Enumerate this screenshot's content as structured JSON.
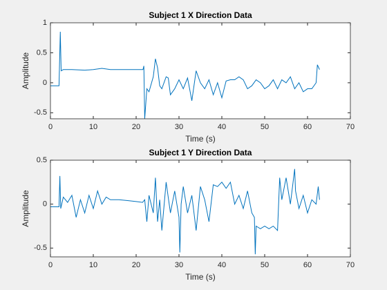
{
  "chart_data": [
    {
      "type": "line",
      "title": "Subject 1 X Direction Data",
      "xlabel": "Time (s)",
      "ylabel": "Amplitude",
      "xlim": [
        0,
        70
      ],
      "xticks": [
        0,
        10,
        20,
        30,
        40,
        50,
        60,
        70
      ],
      "ylim": [
        -0.6,
        1
      ],
      "yticks": [
        -0.5,
        0,
        0.5,
        1
      ],
      "x": [
        0,
        2,
        2.3,
        2.5,
        3,
        5,
        8,
        10,
        12,
        14,
        16,
        18,
        20,
        21.6,
        21.8,
        22,
        22.5,
        23,
        24,
        24.5,
        25,
        25.5,
        26,
        27,
        27.5,
        28,
        29,
        30,
        31,
        32,
        33,
        34,
        35,
        36,
        37,
        38,
        39,
        40,
        41,
        42,
        43,
        44,
        45,
        46,
        47,
        48,
        49,
        50,
        51,
        52,
        53,
        54,
        55,
        56,
        57,
        58,
        59,
        60,
        61,
        62,
        62.3,
        62.8
      ],
      "series": [
        {
          "name": "Subject 1 X",
          "color": "#0072bd",
          "values": [
            -0.05,
            -0.05,
            0.85,
            0.2,
            0.22,
            0.22,
            0.21,
            0.22,
            0.24,
            0.22,
            0.22,
            0.22,
            0.22,
            0.22,
            0.28,
            -0.6,
            -0.1,
            -0.15,
            0.1,
            0.4,
            0.25,
            -0.05,
            -0.1,
            0.1,
            0.08,
            -0.2,
            -0.1,
            0.05,
            -0.1,
            0.08,
            -0.3,
            0.2,
            0.0,
            -0.1,
            0.05,
            -0.2,
            0.0,
            -0.25,
            0.03,
            0.05,
            0.05,
            0.1,
            0.05,
            -0.1,
            -0.05,
            0.05,
            0.0,
            -0.1,
            -0.05,
            0.05,
            -0.1,
            0.05,
            0.0,
            0.1,
            -0.1,
            0.0,
            -0.15,
            -0.1,
            -0.1,
            0.0,
            0.3,
            0.22
          ]
        }
      ]
    },
    {
      "type": "line",
      "title": "Subject 1 Y Direction Data",
      "xlabel": "Time (s)",
      "ylabel": "Amplitude",
      "xlim": [
        0,
        70
      ],
      "xticks": [
        0,
        10,
        20,
        30,
        40,
        50,
        60,
        70
      ],
      "ylim": [
        -0.6,
        0.5
      ],
      "yticks": [
        -0.5,
        0,
        0.5
      ],
      "x": [
        0,
        2,
        2.2,
        2.4,
        3,
        4,
        5,
        6,
        7,
        8,
        9,
        10,
        11,
        12,
        13,
        14,
        15,
        16,
        18,
        20,
        21.5,
        22,
        22.5,
        23,
        24,
        24.5,
        25,
        25.5,
        26,
        27,
        28,
        29,
        30,
        30.2,
        30.5,
        31,
        32,
        33,
        34,
        35,
        36,
        37,
        38,
        39,
        40,
        41,
        42,
        43,
        44,
        45,
        46,
        47,
        47.6,
        47.8,
        48,
        49,
        50,
        51,
        52,
        53,
        53.5,
        54,
        55,
        56,
        57,
        57.2,
        58,
        59,
        60,
        61,
        62,
        62.5,
        62.8
      ],
      "series": [
        {
          "name": "Subject 1 Y",
          "color": "#0072bd",
          "values": [
            -0.03,
            -0.03,
            0.32,
            -0.05,
            0.08,
            0.02,
            0.1,
            -0.15,
            0.05,
            -0.1,
            0.1,
            -0.05,
            0.15,
            0.0,
            0.08,
            0.05,
            0.05,
            0.05,
            0.04,
            0.03,
            0.02,
            0.05,
            -0.2,
            0.1,
            -0.1,
            0.3,
            -0.2,
            0.05,
            -0.3,
            0.25,
            -0.1,
            0.15,
            -0.15,
            -0.55,
            0.0,
            0.2,
            -0.1,
            0.1,
            -0.3,
            0.2,
            0.05,
            -0.2,
            0.22,
            0.2,
            0.25,
            0.18,
            0.25,
            0.0,
            0.1,
            -0.05,
            0.15,
            -0.1,
            -0.15,
            -0.57,
            -0.25,
            -0.28,
            -0.25,
            -0.28,
            -0.25,
            -0.3,
            0.3,
            0.05,
            0.3,
            0.0,
            0.4,
            0.15,
            -0.05,
            0.1,
            -0.1,
            0.05,
            0.0,
            0.2,
            0.05
          ]
        }
      ]
    }
  ]
}
